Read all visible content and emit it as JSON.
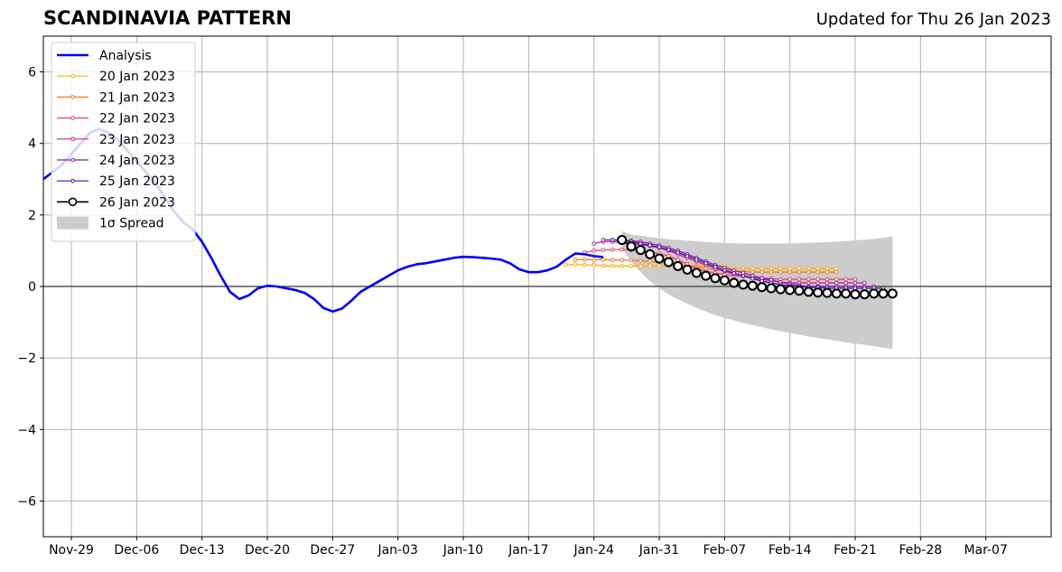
{
  "chart_data": {
    "type": "line",
    "title": "SCANDINAVIA PATTERN",
    "subtitle": "Updated for Thu 26 Jan 2023",
    "xlabel": "",
    "ylabel": "",
    "x_start": "2022-11-26",
    "x_end": "2023-03-14",
    "xlim": [
      "2022-11-26",
      "2023-03-14"
    ],
    "ylim": [
      -7,
      7
    ],
    "grid": true,
    "legend_position": "top-left",
    "x_ticks": [
      {
        "date": "2022-11-29",
        "label": "Nov-29"
      },
      {
        "date": "2022-12-06",
        "label": "Dec-06"
      },
      {
        "date": "2022-12-13",
        "label": "Dec-13"
      },
      {
        "date": "2022-12-20",
        "label": "Dec-20"
      },
      {
        "date": "2022-12-27",
        "label": "Dec-27"
      },
      {
        "date": "2023-01-03",
        "label": "Jan-03"
      },
      {
        "date": "2023-01-10",
        "label": "Jan-10"
      },
      {
        "date": "2023-01-17",
        "label": "Jan-17"
      },
      {
        "date": "2023-01-24",
        "label": "Jan-24"
      },
      {
        "date": "2023-01-31",
        "label": "Jan-31"
      },
      {
        "date": "2023-02-07",
        "label": "Feb-07"
      },
      {
        "date": "2023-02-14",
        "label": "Feb-14"
      },
      {
        "date": "2023-02-21",
        "label": "Feb-21"
      },
      {
        "date": "2023-02-28",
        "label": "Feb-28"
      },
      {
        "date": "2023-03-07",
        "label": "Mar-07"
      }
    ],
    "y_ticks": [
      {
        "value": -6,
        "label": "−6"
      },
      {
        "value": -4,
        "label": "−4"
      },
      {
        "value": -2,
        "label": "−2"
      },
      {
        "value": 0,
        "label": "0"
      },
      {
        "value": 2,
        "label": "2"
      },
      {
        "value": 4,
        "label": "4"
      },
      {
        "value": 6,
        "label": "6"
      }
    ],
    "analysis": {
      "name": "Analysis",
      "color": "#0000ff",
      "dates": [
        "2022-11-26",
        "2022-11-27",
        "2022-11-28",
        "2022-11-29",
        "2022-11-30",
        "2022-12-01",
        "2022-12-02",
        "2022-12-03",
        "2022-12-04",
        "2022-12-05",
        "2022-12-06",
        "2022-12-07",
        "2022-12-08",
        "2022-12-09",
        "2022-12-10",
        "2022-12-11",
        "2022-12-12",
        "2022-12-13",
        "2022-12-14",
        "2022-12-15",
        "2022-12-16",
        "2022-12-17",
        "2022-12-18",
        "2022-12-19",
        "2022-12-20",
        "2022-12-21",
        "2022-12-22",
        "2022-12-23",
        "2022-12-24",
        "2022-12-25",
        "2022-12-26",
        "2022-12-27",
        "2022-12-28",
        "2022-12-29",
        "2022-12-30",
        "2022-12-31",
        "2023-01-01",
        "2023-01-02",
        "2023-01-03",
        "2023-01-04",
        "2023-01-05",
        "2023-01-06",
        "2023-01-07",
        "2023-01-08",
        "2023-01-09",
        "2023-01-10",
        "2023-01-11",
        "2023-01-12",
        "2023-01-13",
        "2023-01-14",
        "2023-01-15",
        "2023-01-16",
        "2023-01-17",
        "2023-01-18",
        "2023-01-19",
        "2023-01-20",
        "2023-01-21",
        "2023-01-22",
        "2023-01-23",
        "2023-01-24",
        "2023-01-25"
      ],
      "values": [
        3.0,
        3.2,
        3.4,
        3.7,
        4.0,
        4.3,
        4.4,
        4.3,
        4.1,
        3.8,
        3.5,
        3.2,
        2.9,
        2.5,
        2.1,
        1.8,
        1.6,
        1.25,
        0.8,
        0.3,
        -0.15,
        -0.35,
        -0.25,
        -0.05,
        0.02,
        0.0,
        -0.05,
        -0.1,
        -0.18,
        -0.35,
        -0.6,
        -0.7,
        -0.62,
        -0.4,
        -0.15,
        0.0,
        0.15,
        0.3,
        0.45,
        0.55,
        0.62,
        0.65,
        0.7,
        0.75,
        0.8,
        0.83,
        0.82,
        0.8,
        0.78,
        0.75,
        0.65,
        0.48,
        0.4,
        0.4,
        0.45,
        0.55,
        0.75,
        0.92,
        0.9,
        0.85,
        0.82
      ]
    },
    "series": [
      {
        "name": "20 Jan 2023",
        "color": "#ffb000",
        "start": "2023-01-21",
        "values": [
          0.6,
          0.62,
          0.6,
          0.6,
          0.58,
          0.57,
          0.57,
          0.57,
          0.57,
          0.57,
          0.58,
          0.58,
          0.58,
          0.58,
          0.58,
          0.58,
          0.58,
          0.58,
          0.5,
          0.5,
          0.5,
          0.5,
          0.5,
          0.5,
          0.5,
          0.5,
          0.5,
          0.5,
          0.5,
          0.5
        ]
      },
      {
        "name": "21 Jan 2023",
        "color": "#f47a27",
        "start": "2023-01-22",
        "values": [
          0.75,
          0.75,
          0.75,
          0.75,
          0.74,
          0.74,
          0.73,
          0.72,
          0.7,
          0.68,
          0.65,
          0.62,
          0.58,
          0.55,
          0.5,
          0.47,
          0.45,
          0.43,
          0.42,
          0.4,
          0.4,
          0.4,
          0.4,
          0.4,
          0.4,
          0.4,
          0.4,
          0.4,
          0.4
        ]
      },
      {
        "name": "22 Jan 2023",
        "color": "#e04870",
        "start": "2023-01-23",
        "values": [
          0.95,
          1.0,
          1.02,
          1.03,
          1.03,
          1.02,
          1.0,
          0.97,
          0.92,
          0.85,
          0.75,
          0.62,
          0.5,
          0.42,
          0.38,
          0.33,
          0.3,
          0.28,
          0.25,
          0.23,
          0.22,
          0.2,
          0.2,
          0.2,
          0.2,
          0.2,
          0.2,
          0.2,
          0.2,
          0.2
        ]
      },
      {
        "name": "23 Jan 2023",
        "color": "#b8288c",
        "start": "2023-01-24",
        "values": [
          1.2,
          1.25,
          1.25,
          1.22,
          1.2,
          1.17,
          1.13,
          1.08,
          1.0,
          0.9,
          0.8,
          0.7,
          0.6,
          0.5,
          0.42,
          0.35,
          0.3,
          0.25,
          0.2,
          0.16,
          0.12,
          0.1,
          0.1,
          0.1,
          0.1,
          0.1,
          0.1,
          0.1,
          0.1,
          0.1
        ]
      },
      {
        "name": "24 Jan 2023",
        "color": "#8c18a0",
        "start": "2023-01-25",
        "values": [
          1.3,
          1.3,
          1.3,
          1.28,
          1.25,
          1.2,
          1.15,
          1.08,
          1.0,
          0.9,
          0.8,
          0.7,
          0.6,
          0.52,
          0.45,
          0.38,
          0.3,
          0.23,
          0.18,
          0.12,
          0.07,
          0.03,
          0.0,
          0.0,
          0.0,
          0.0,
          0.0,
          0.0,
          0.0,
          0.0
        ]
      },
      {
        "name": "25 Jan 2023",
        "color": "#4a14a0",
        "start": "2023-01-26",
        "values": [
          1.3,
          1.28,
          1.25,
          1.2,
          1.15,
          1.1,
          1.03,
          0.95,
          0.85,
          0.75,
          0.65,
          0.55,
          0.45,
          0.37,
          0.3,
          0.22,
          0.15,
          0.1,
          0.05,
          0.02,
          0.0,
          -0.02,
          -0.03,
          -0.05,
          -0.05,
          -0.05,
          -0.05,
          -0.05,
          -0.05,
          -0.05
        ]
      },
      {
        "name": "26 Jan 2023",
        "color": "#000000",
        "start": "2023-01-27",
        "values": [
          1.3,
          1.12,
          1.02,
          0.9,
          0.78,
          0.68,
          0.57,
          0.47,
          0.38,
          0.3,
          0.23,
          0.17,
          0.1,
          0.05,
          0.02,
          -0.02,
          -0.05,
          -0.08,
          -0.1,
          -0.12,
          -0.15,
          -0.17,
          -0.18,
          -0.2,
          -0.2,
          -0.22,
          -0.22,
          -0.2,
          -0.2,
          -0.2
        ]
      }
    ],
    "spread": {
      "name": "1σ Spread",
      "color": "#cccccc",
      "start": "2023-01-27",
      "upper": [
        1.55,
        1.45,
        1.42,
        1.38,
        1.35,
        1.32,
        1.3,
        1.28,
        1.26,
        1.24,
        1.23,
        1.22,
        1.21,
        1.2,
        1.2,
        1.2,
        1.2,
        1.2,
        1.2,
        1.21,
        1.22,
        1.23,
        1.24,
        1.25,
        1.27,
        1.29,
        1.31,
        1.33,
        1.36,
        1.4
      ],
      "lower": [
        1.05,
        0.7,
        0.4,
        0.15,
        -0.05,
        -0.22,
        -0.36,
        -0.48,
        -0.6,
        -0.7,
        -0.8,
        -0.88,
        -0.95,
        -1.02,
        -1.08,
        -1.14,
        -1.2,
        -1.25,
        -1.3,
        -1.35,
        -1.4,
        -1.44,
        -1.48,
        -1.52,
        -1.56,
        -1.6,
        -1.63,
        -1.67,
        -1.71,
        -1.75
      ]
    }
  }
}
